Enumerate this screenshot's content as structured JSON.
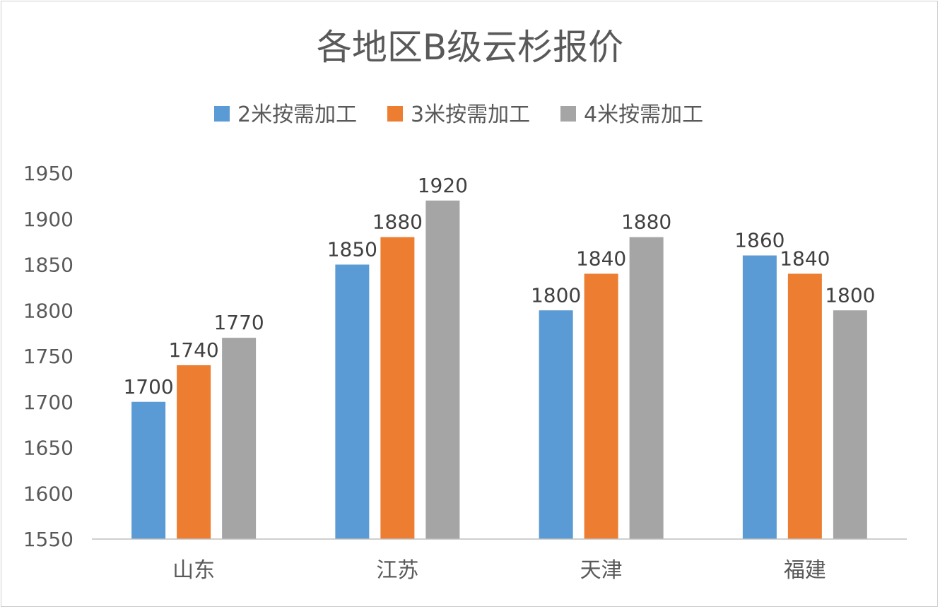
{
  "chart_data": {
    "type": "bar",
    "title": "各地区B级云杉报价",
    "categories": [
      "山东",
      "江苏",
      "天津",
      "福建"
    ],
    "series": [
      {
        "name": "2米按需加工",
        "color": "#5B9BD5",
        "values": [
          1700,
          1850,
          1800,
          1860
        ]
      },
      {
        "name": "3米按需加工",
        "color": "#ED7D31",
        "values": [
          1740,
          1880,
          1840,
          1840
        ]
      },
      {
        "name": "4米按需加工",
        "color": "#A5A5A5",
        "values": [
          1770,
          1920,
          1880,
          1800
        ]
      }
    ],
    "ylim": [
      1550,
      1950
    ],
    "yticks": [
      1550,
      1600,
      1650,
      1700,
      1750,
      1800,
      1850,
      1900,
      1950
    ],
    "xlabel": "",
    "ylabel": "",
    "grid": false,
    "legend": "top",
    "data_labels": true
  }
}
